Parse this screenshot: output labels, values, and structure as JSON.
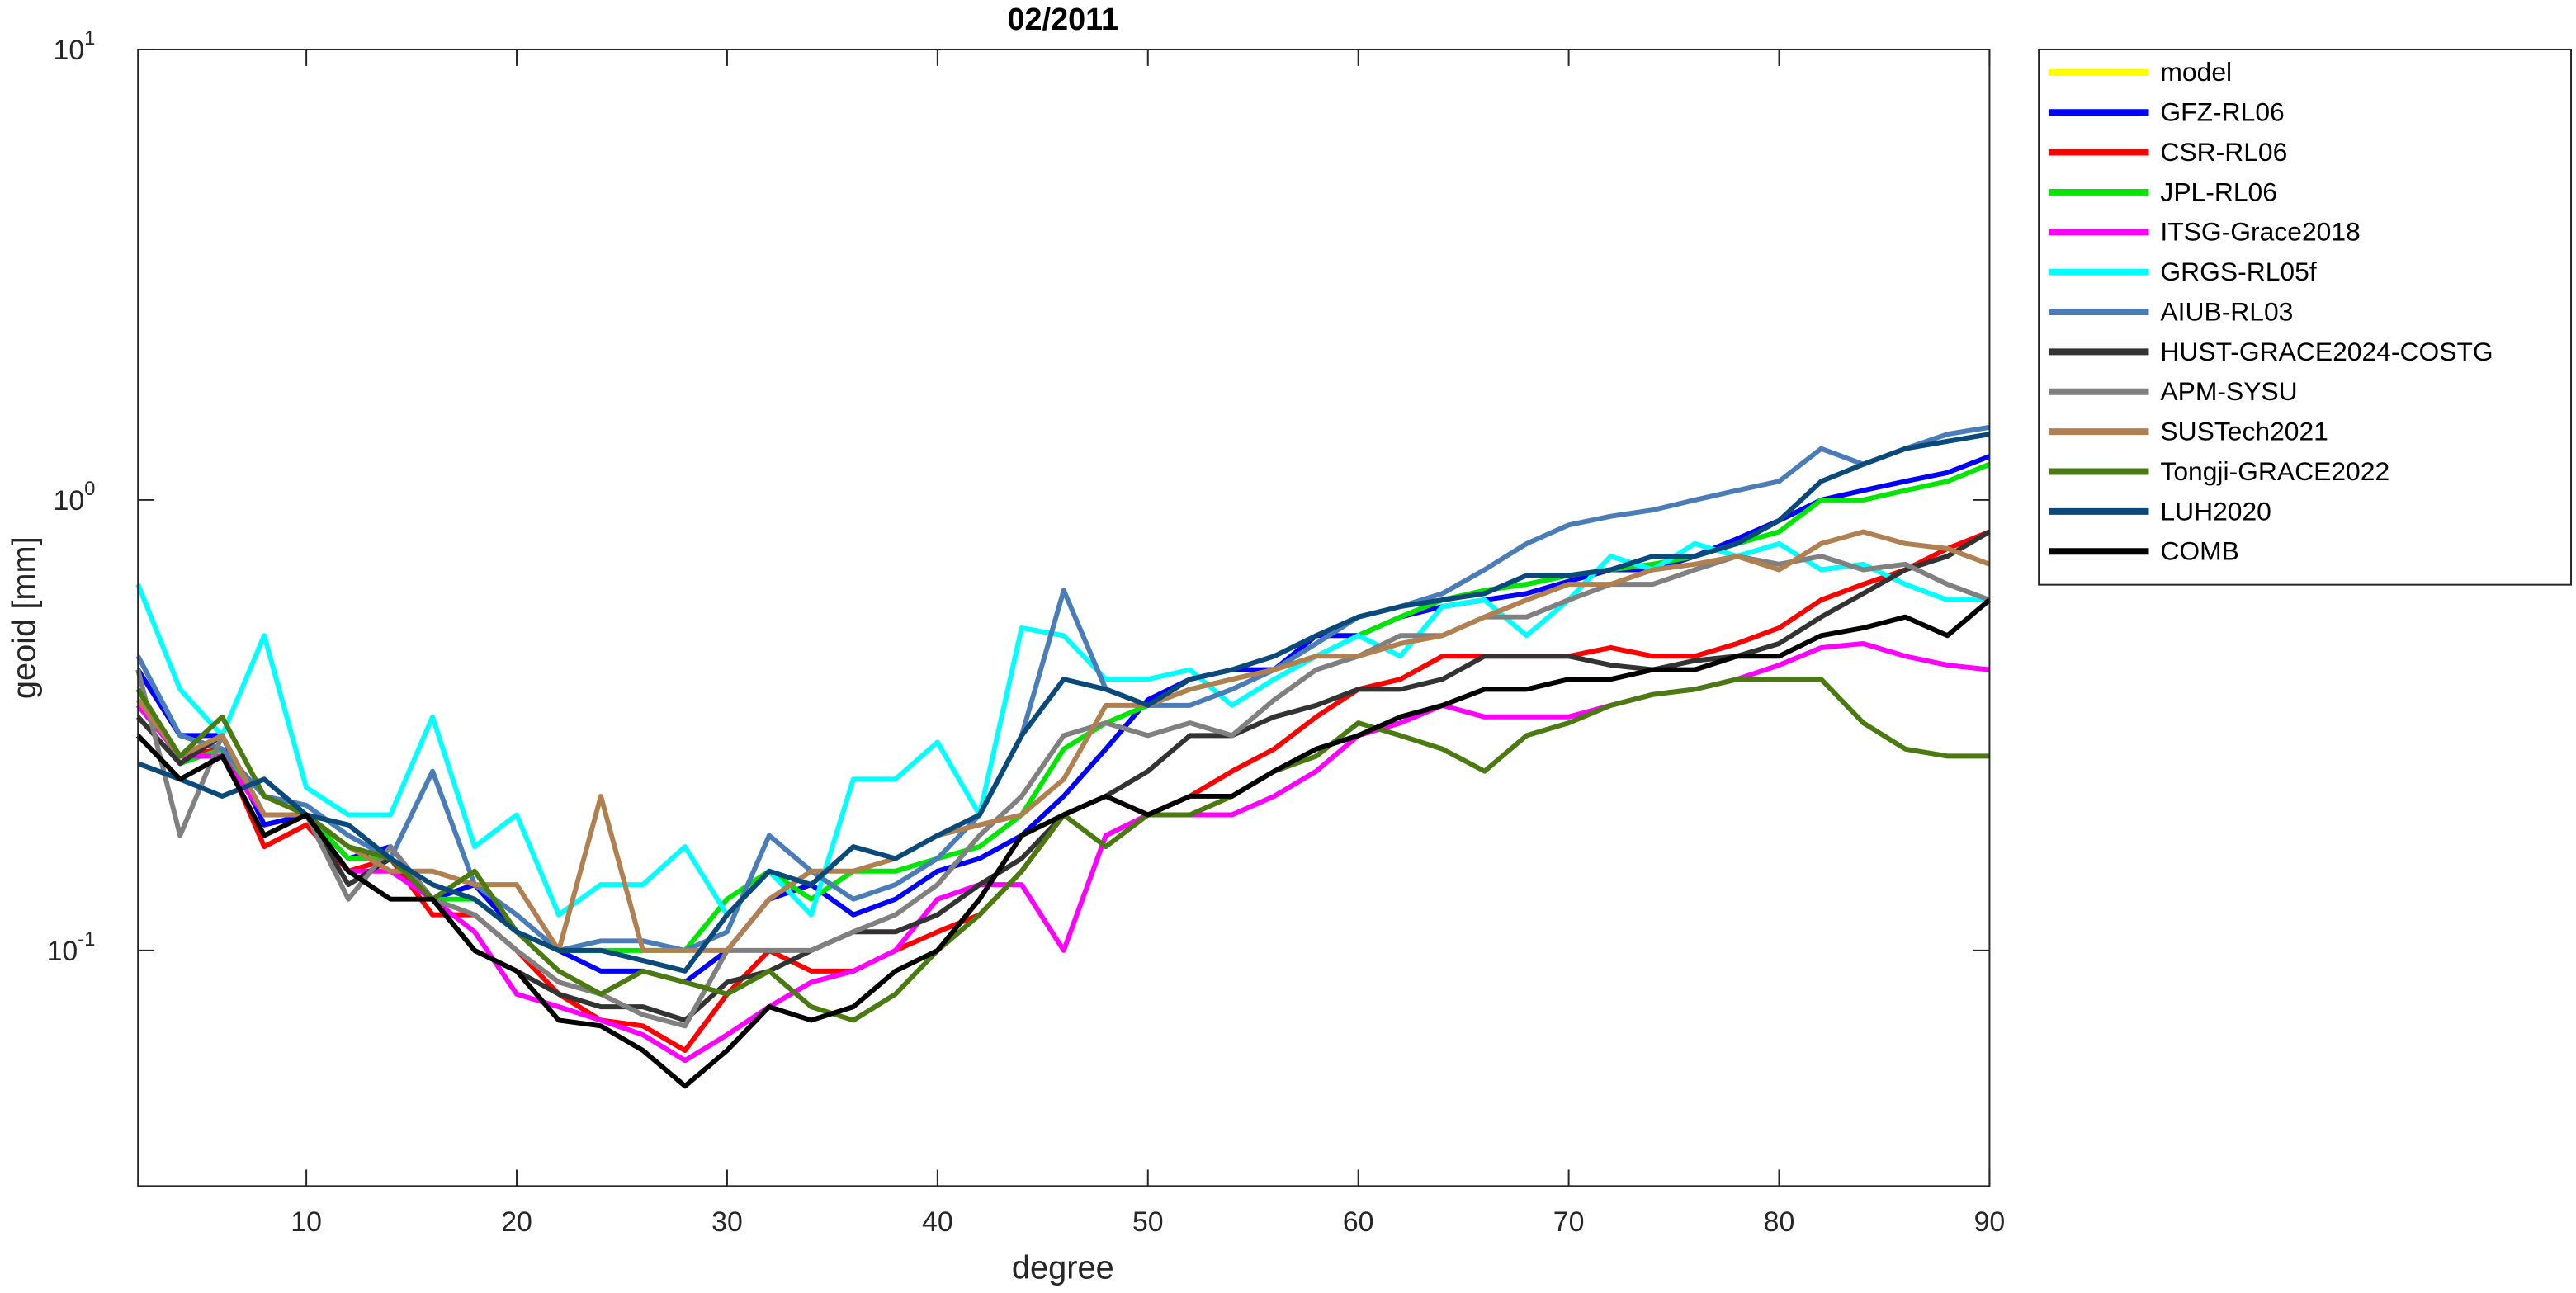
{
  "chart_data": {
    "type": "line",
    "title": "02/2011",
    "xlabel": "degree",
    "ylabel": "geoid [mm]",
    "yscale": "log",
    "xlim": [
      2,
      90
    ],
    "xticks": [
      10,
      20,
      30,
      40,
      50,
      60,
      70,
      80,
      90
    ],
    "ylim": [
      0.03,
      10
    ],
    "yticks": [
      {
        "value": 0.1,
        "label": "10",
        "exponent": "-1"
      },
      {
        "value": 1,
        "label": "10",
        "exponent": "0"
      },
      {
        "value": 10,
        "label": "10",
        "exponent": "1"
      }
    ],
    "grid": false,
    "legend": "outside-right",
    "x": [
      2,
      4,
      6,
      8,
      10,
      12,
      14,
      16,
      18,
      20,
      22,
      24,
      26,
      28,
      30,
      32,
      34,
      36,
      38,
      40,
      42,
      44,
      46,
      48,
      50,
      52,
      54,
      56,
      58,
      60,
      62,
      64,
      66,
      68,
      70,
      72,
      74,
      76,
      78,
      80,
      82,
      84,
      86,
      88,
      90
    ],
    "series": [
      {
        "name": "model",
        "color": "#ffff00",
        "values": [
          null,
          null,
          null,
          null,
          null,
          null,
          null,
          null,
          null,
          null,
          null,
          null,
          null,
          null,
          null,
          null,
          null,
          null,
          null,
          null,
          null,
          null,
          null,
          null,
          null,
          null,
          null,
          null,
          null,
          null,
          null,
          null,
          null,
          null,
          null,
          null,
          null,
          null,
          null,
          null,
          null,
          null,
          null,
          null,
          null
        ]
      },
      {
        "name": "GFZ-RL06",
        "color": "#0000ff",
        "values": [
          0.42,
          0.3,
          0.3,
          0.19,
          0.2,
          0.16,
          0.17,
          0.13,
          0.14,
          0.11,
          0.1,
          0.09,
          0.09,
          0.085,
          0.1,
          0.13,
          0.14,
          0.12,
          0.13,
          0.15,
          0.16,
          0.18,
          0.22,
          0.28,
          0.36,
          0.4,
          0.42,
          0.42,
          0.5,
          0.5,
          0.55,
          0.58,
          0.6,
          0.62,
          0.66,
          0.7,
          0.7,
          0.75,
          0.82,
          0.9,
          1.0,
          1.05,
          1.1,
          1.15,
          1.25
        ]
      },
      {
        "name": "CSR-RL06",
        "color": "#ff0000",
        "values": [
          0.35,
          0.27,
          0.28,
          0.17,
          0.19,
          0.15,
          0.16,
          0.12,
          0.12,
          0.1,
          0.08,
          0.07,
          0.068,
          0.06,
          0.08,
          0.1,
          0.09,
          0.09,
          0.1,
          0.11,
          0.12,
          0.15,
          0.2,
          0.22,
          0.2,
          0.22,
          0.25,
          0.28,
          0.33,
          0.38,
          0.4,
          0.45,
          0.45,
          0.45,
          0.45,
          0.47,
          0.45,
          0.45,
          0.48,
          0.52,
          0.6,
          0.65,
          0.7,
          0.78,
          0.85
        ]
      },
      {
        "name": "JPL-RL06",
        "color": "#00e600",
        "values": [
          0.38,
          0.26,
          0.28,
          0.2,
          0.2,
          0.16,
          0.16,
          0.13,
          0.13,
          0.11,
          0.1,
          0.1,
          0.1,
          0.1,
          0.13,
          0.15,
          0.13,
          0.15,
          0.15,
          0.16,
          0.17,
          0.2,
          0.28,
          0.32,
          0.35,
          0.38,
          0.4,
          0.42,
          0.45,
          0.5,
          0.55,
          0.6,
          0.63,
          0.65,
          0.68,
          0.7,
          0.72,
          0.75,
          0.8,
          0.85,
          1.0,
          1.0,
          1.05,
          1.1,
          1.2
        ]
      },
      {
        "name": "ITSG-Grace2018",
        "color": "#ff00ff",
        "values": [
          0.35,
          0.27,
          0.27,
          0.2,
          0.2,
          0.15,
          0.15,
          0.13,
          0.11,
          0.08,
          0.075,
          0.07,
          0.065,
          0.057,
          0.065,
          0.075,
          0.085,
          0.09,
          0.1,
          0.13,
          0.14,
          0.14,
          0.1,
          0.18,
          0.2,
          0.2,
          0.2,
          0.22,
          0.25,
          0.3,
          0.32,
          0.35,
          0.33,
          0.33,
          0.33,
          0.35,
          0.37,
          0.38,
          0.4,
          0.43,
          0.47,
          0.48,
          0.45,
          0.43,
          0.42
        ]
      },
      {
        "name": "GRGS-RL05f",
        "color": "#00ffff",
        "values": [
          0.65,
          0.38,
          0.3,
          0.5,
          0.23,
          0.2,
          0.2,
          0.33,
          0.17,
          0.2,
          0.12,
          0.14,
          0.14,
          0.17,
          0.12,
          0.15,
          0.12,
          0.24,
          0.24,
          0.29,
          0.2,
          0.52,
          0.5,
          0.4,
          0.4,
          0.42,
          0.35,
          0.4,
          0.45,
          0.5,
          0.45,
          0.58,
          0.6,
          0.5,
          0.6,
          0.75,
          0.7,
          0.8,
          0.75,
          0.8,
          0.7,
          0.72,
          0.65,
          0.6,
          0.6
        ]
      },
      {
        "name": "AIUB-RL03",
        "color": "#4a7db8",
        "values": [
          0.45,
          0.3,
          0.28,
          0.22,
          0.21,
          0.18,
          0.16,
          0.25,
          0.14,
          0.12,
          0.1,
          0.105,
          0.105,
          0.1,
          0.11,
          0.18,
          0.15,
          0.13,
          0.14,
          0.16,
          0.2,
          0.3,
          0.63,
          0.38,
          0.35,
          0.35,
          0.38,
          0.42,
          0.48,
          0.55,
          0.58,
          0.62,
          0.7,
          0.8,
          0.88,
          0.92,
          0.95,
          1.0,
          1.05,
          1.1,
          1.3,
          1.2,
          1.3,
          1.4,
          1.45
        ]
      },
      {
        "name": "HUST-GRACE2024-COSTG",
        "color": "#333333",
        "values": [
          0.33,
          0.26,
          0.3,
          0.2,
          0.2,
          0.14,
          0.16,
          0.13,
          0.1,
          0.09,
          0.08,
          0.075,
          0.075,
          0.07,
          0.085,
          0.09,
          0.1,
          0.11,
          0.11,
          0.12,
          0.14,
          0.16,
          0.2,
          0.22,
          0.25,
          0.3,
          0.3,
          0.33,
          0.35,
          0.38,
          0.38,
          0.4,
          0.45,
          0.45,
          0.45,
          0.43,
          0.42,
          0.44,
          0.45,
          0.48,
          0.55,
          0.62,
          0.7,
          0.75,
          0.85
        ]
      },
      {
        "name": "APM-SYSU",
        "color": "#808080",
        "values": [
          0.42,
          0.18,
          0.3,
          0.2,
          0.2,
          0.13,
          0.17,
          0.13,
          0.12,
          0.1,
          0.085,
          0.08,
          0.072,
          0.068,
          0.1,
          0.1,
          0.1,
          0.11,
          0.12,
          0.14,
          0.18,
          0.22,
          0.3,
          0.32,
          0.3,
          0.32,
          0.3,
          0.36,
          0.42,
          0.45,
          0.5,
          0.5,
          0.55,
          0.55,
          0.6,
          0.65,
          0.65,
          0.7,
          0.75,
          0.72,
          0.75,
          0.7,
          0.72,
          0.65,
          0.6
        ]
      },
      {
        "name": "SUSTech2021",
        "color": "#b08050",
        "values": [
          0.36,
          0.27,
          0.3,
          0.2,
          0.2,
          0.17,
          0.15,
          0.15,
          0.14,
          0.14,
          0.1,
          0.22,
          0.1,
          0.1,
          0.1,
          0.13,
          0.15,
          0.15,
          0.16,
          0.18,
          0.19,
          0.2,
          0.24,
          0.35,
          0.35,
          0.38,
          0.4,
          0.42,
          0.45,
          0.45,
          0.48,
          0.5,
          0.55,
          0.6,
          0.65,
          0.65,
          0.7,
          0.72,
          0.75,
          0.7,
          0.8,
          0.85,
          0.8,
          0.78,
          0.72
        ]
      },
      {
        "name": "Tongji-GRACE2022",
        "color": "#4a7a10",
        "values": [
          0.38,
          0.27,
          0.33,
          0.22,
          0.2,
          0.17,
          0.16,
          0.13,
          0.15,
          0.11,
          0.09,
          0.08,
          0.09,
          0.085,
          0.08,
          0.09,
          0.075,
          0.07,
          0.08,
          0.1,
          0.12,
          0.15,
          0.2,
          0.17,
          0.2,
          0.2,
          0.22,
          0.25,
          0.27,
          0.32,
          0.3,
          0.28,
          0.25,
          0.3,
          0.32,
          0.35,
          0.37,
          0.38,
          0.4,
          0.4,
          0.4,
          0.32,
          0.28,
          0.27,
          0.27
        ]
      },
      {
        "name": "LUH2020",
        "color": "#0a4a7a",
        "values": [
          0.26,
          0.24,
          0.22,
          0.24,
          0.2,
          0.19,
          0.16,
          0.14,
          0.13,
          0.11,
          0.1,
          0.1,
          0.095,
          0.09,
          0.12,
          0.15,
          0.14,
          0.17,
          0.16,
          0.18,
          0.2,
          0.3,
          0.4,
          0.38,
          0.35,
          0.4,
          0.42,
          0.45,
          0.5,
          0.55,
          0.58,
          0.6,
          0.62,
          0.68,
          0.68,
          0.7,
          0.75,
          0.75,
          0.8,
          0.9,
          1.1,
          1.2,
          1.3,
          1.35,
          1.4
        ]
      },
      {
        "name": "COMB",
        "color": "#000000",
        "values": [
          0.3,
          0.24,
          0.27,
          0.18,
          0.2,
          0.15,
          0.13,
          0.13,
          0.1,
          0.09,
          0.07,
          0.068,
          0.06,
          0.05,
          0.06,
          0.075,
          0.07,
          0.075,
          0.09,
          0.1,
          0.13,
          0.18,
          0.2,
          0.22,
          0.2,
          0.22,
          0.22,
          0.25,
          0.28,
          0.3,
          0.33,
          0.35,
          0.38,
          0.38,
          0.4,
          0.4,
          0.42,
          0.42,
          0.45,
          0.45,
          0.5,
          0.52,
          0.55,
          0.5,
          0.6
        ]
      }
    ]
  }
}
